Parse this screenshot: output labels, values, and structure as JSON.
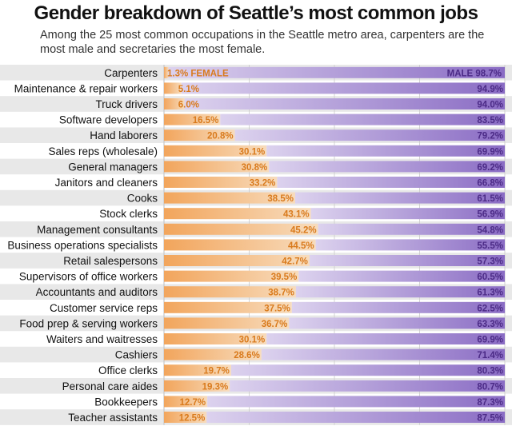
{
  "title": "Gender breakdown of Seattle’s most common jobs",
  "subtitle": "Among the 25 most common occupations in the Seattle metro area, carpenters are the most male and secretaries the most female.",
  "colors": {
    "male": "#8a6cc4",
    "male_light": "#dcd2ee",
    "female": "#f2a55c",
    "female_light": "#f7dcbd",
    "male_text": "#4b2a86",
    "female_text": "#d97a1c",
    "stripe": "#e8e8e8",
    "grid": "#c8c8c8"
  },
  "chart_data": {
    "type": "bar",
    "subtype": "diverging-stacked",
    "categories": [
      "Carpenters",
      "Maintenance & repair workers",
      "Truck drivers",
      "Software developers",
      "Hand laborers",
      "Sales reps (wholesale)",
      "General managers",
      "Janitors and cleaners",
      "Cooks",
      "Stock clerks",
      "Management consultants",
      "Business operations specialists",
      "Retail salespersons",
      "Supervisors of office workers",
      "Accountants and auditors",
      "Customer service reps",
      "Food prep & serving workers",
      "Waiters and waitresses",
      "Cashiers",
      "Office clerks",
      "Personal care aides",
      "Bookkeepers",
      "Teacher assistants"
    ],
    "series": [
      {
        "name": "Female",
        "values": [
          1.3,
          5.1,
          6.0,
          16.5,
          20.8,
          30.1,
          30.8,
          33.2,
          38.5,
          43.1,
          45.2,
          44.5,
          42.7,
          39.5,
          38.7,
          37.5,
          36.7,
          30.1,
          28.6,
          19.7,
          19.3,
          12.7,
          12.5
        ]
      },
      {
        "name": "Male",
        "values": [
          98.7,
          94.9,
          94.0,
          83.5,
          79.2,
          69.9,
          69.2,
          66.8,
          61.5,
          56.9,
          54.8,
          55.5,
          57.3,
          60.5,
          61.3,
          62.5,
          63.3,
          69.9,
          71.4,
          80.3,
          80.7,
          87.3,
          87.5
        ]
      }
    ],
    "female_labels": [
      "1.3% FEMALE",
      "5.1%",
      "6.0%",
      "16.5%",
      "20.8%",
      "30.1%",
      "30.8%",
      "33.2%",
      "38.5%",
      "43.1%",
      "45.2%",
      "44.5%",
      "42.7%",
      "39.5%",
      "38.7%",
      "37.5%",
      "36.7%",
      "30.1%",
      "28.6%",
      "19.7%",
      "19.3%",
      "12.7%",
      "12.5%"
    ],
    "male_labels": [
      "MALE 98.7%",
      "94.9%",
      "94.0%",
      "83.5%",
      "79.2%",
      "69.9%",
      "69.2%",
      "66.8%",
      "61.5%",
      "56.9%",
      "54.8%",
      "55.5%",
      "57.3%",
      "60.5%",
      "61.3%",
      "62.5%",
      "63.3%",
      "69.9%",
      "71.4%",
      "80.3%",
      "80.7%",
      "87.3%",
      "87.5%"
    ],
    "xlim": [
      0,
      100
    ],
    "grid": true,
    "gridlines": [
      0,
      25,
      50,
      75,
      100
    ],
    "unit": "%"
  }
}
